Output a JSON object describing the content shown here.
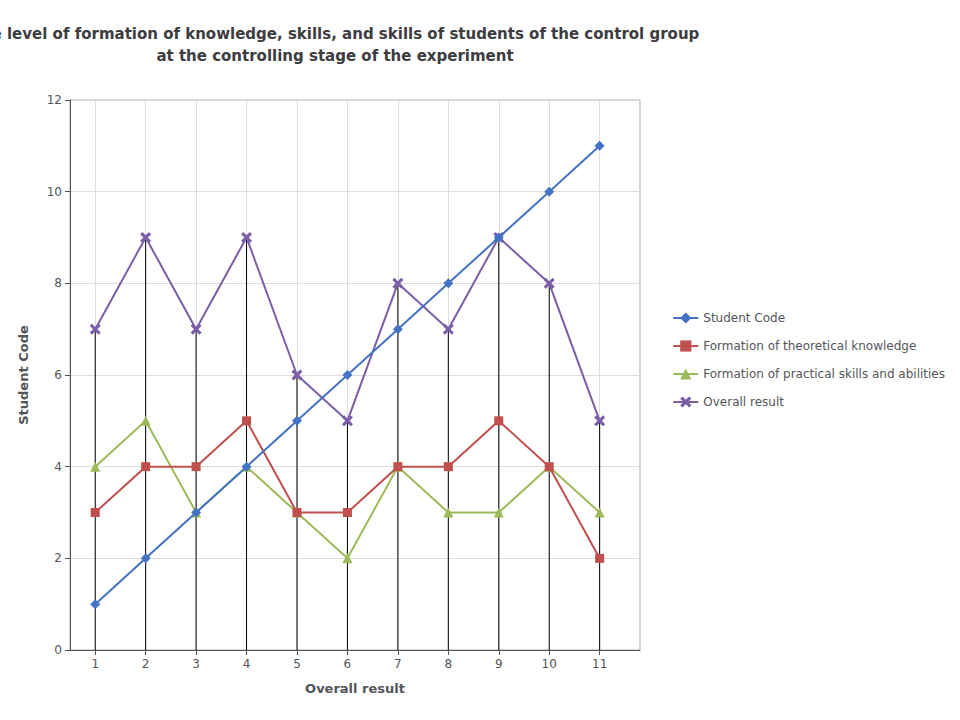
{
  "chart_data": {
    "type": "line",
    "title": "The level of formation of knowledge, skills, and skills of students of the control group\nat the controlling stage of the experiment",
    "xlabel": "Overall result",
    "ylabel": "Student Code",
    "x": [
      1,
      2,
      3,
      4,
      5,
      6,
      7,
      8,
      9,
      10,
      11
    ],
    "series": [
      {
        "name": "Student Code",
        "color": "#4472C4",
        "marker": "diamond",
        "values": [
          1,
          2,
          3,
          4,
          5,
          6,
          7,
          8,
          9,
          10,
          11
        ]
      },
      {
        "name": "Formation of theoretical knowledge",
        "color": "#C0504D",
        "marker": "square",
        "values": [
          3,
          4,
          4,
          5,
          3,
          3,
          4,
          4,
          5,
          4,
          2
        ]
      },
      {
        "name": "Formation of practical skills and abilities",
        "color": "#9BBB59",
        "marker": "triangle",
        "values": [
          4,
          5,
          3,
          4,
          3,
          2,
          4,
          3,
          3,
          4,
          3
        ]
      },
      {
        "name": "Overall result",
        "color": "#7B5EA7",
        "marker": "x",
        "values": [
          7,
          9,
          7,
          9,
          6,
          5,
          8,
          7,
          9,
          8,
          5
        ]
      }
    ],
    "xlim": [
      0.5,
      11.8
    ],
    "xticks": [
      1,
      2,
      3,
      4,
      5,
      6,
      7,
      8,
      9,
      10,
      11
    ],
    "ylim": [
      0,
      12
    ],
    "yticks": [
      0,
      2,
      4,
      6,
      8,
      10,
      12
    ],
    "grid": true,
    "legend": "right"
  }
}
